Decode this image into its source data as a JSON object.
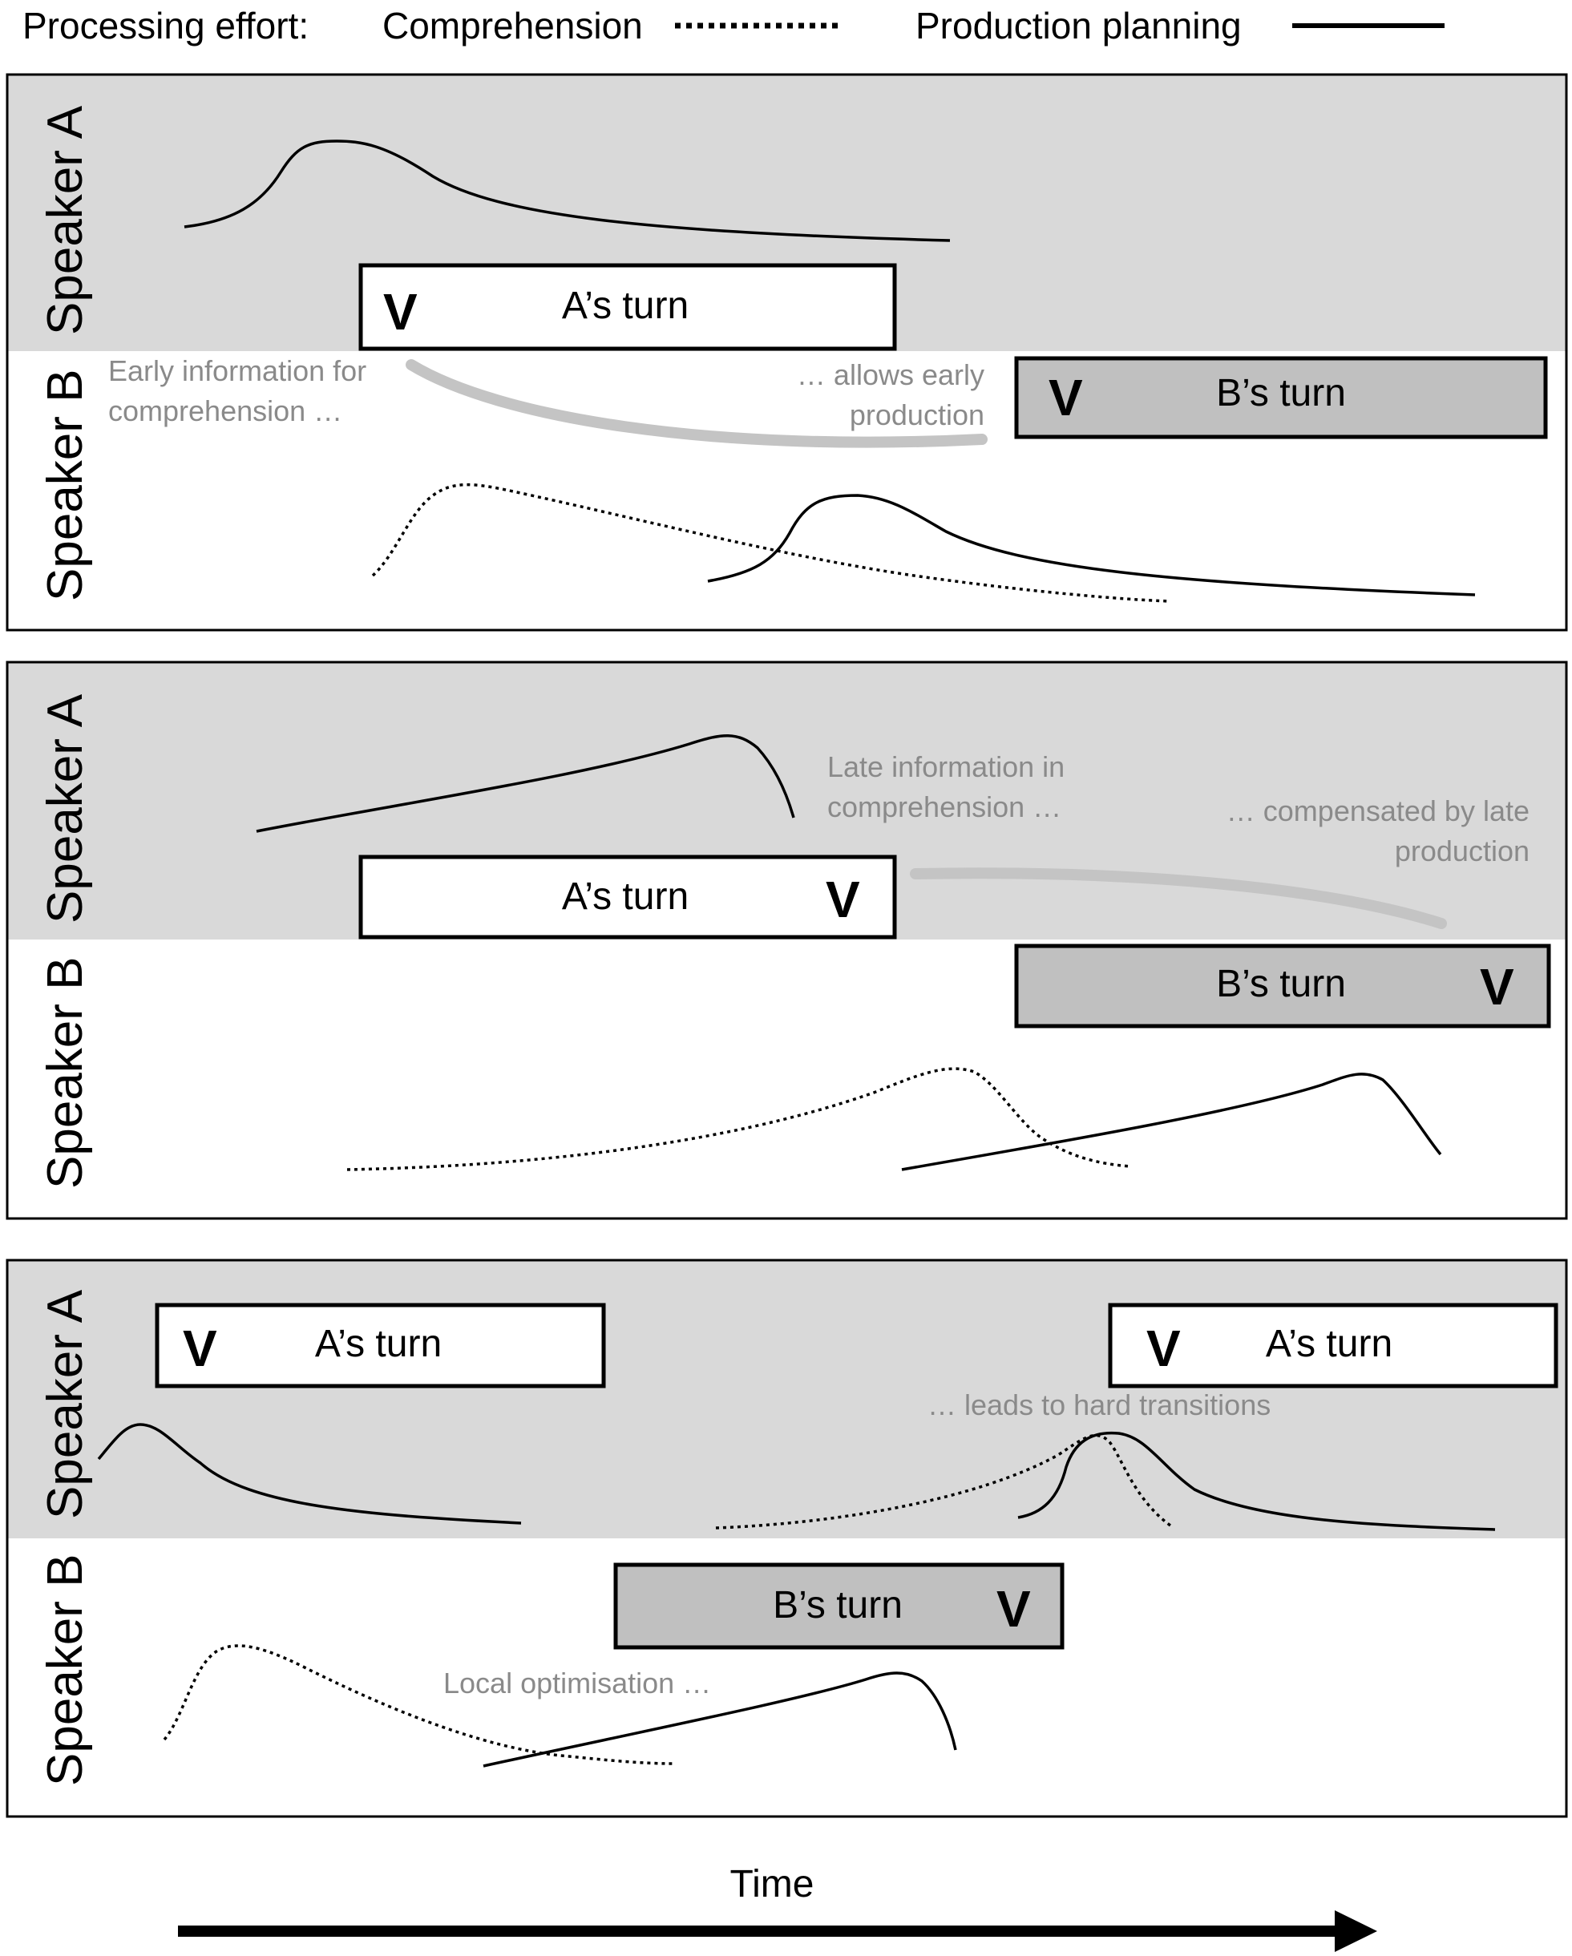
{
  "legend": {
    "heading": "Processing effort:",
    "comprehension": "Comprehension",
    "production": "Production planning"
  },
  "speakers": {
    "a": "Speaker A",
    "b": "Speaker B"
  },
  "turns": {
    "a": "A’s turn",
    "b": "B’s turn",
    "marker": "V"
  },
  "panel1": {
    "note_early_1": "Early information  for",
    "note_early_2": "comprehension …",
    "note_allows_1": "… allows early",
    "note_allows_2": "production"
  },
  "panel2": {
    "note_late_1": "Late information  in",
    "note_late_2": "comprehension …",
    "note_comp_1": "… compensated by late",
    "note_comp_2": "production"
  },
  "panel3": {
    "note_hard": "… leads to hard transitions",
    "note_local": "Local optimisation  …"
  },
  "axis": {
    "time": "Time"
  },
  "colors": {
    "speaker_a_band": "#d9d9d9",
    "b_turn_fill": "#c0c0c0",
    "note_text": "#8a8a8a",
    "arrow": "#c4c4c4"
  }
}
